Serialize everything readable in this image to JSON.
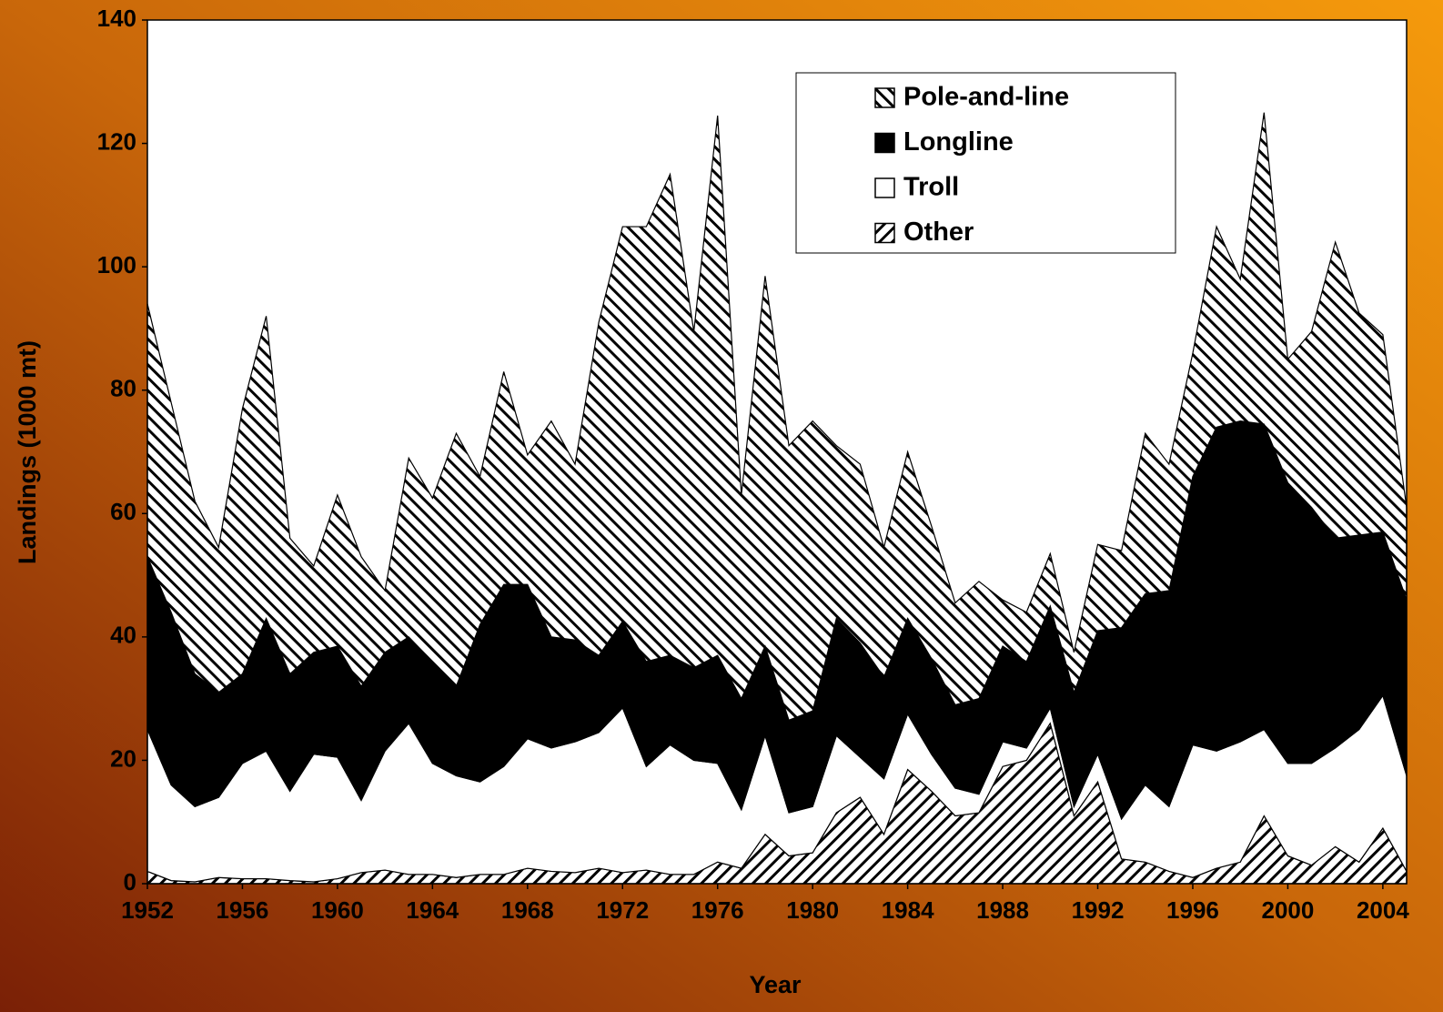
{
  "chart_data": {
    "type": "stacked-area",
    "y_label": "Landings (1000 mt)",
    "x_label": "Year",
    "x": [
      1952,
      1953,
      1954,
      1955,
      1956,
      1957,
      1958,
      1959,
      1960,
      1961,
      1962,
      1963,
      1964,
      1965,
      1966,
      1967,
      1968,
      1969,
      1970,
      1971,
      1972,
      1973,
      1974,
      1975,
      1976,
      1977,
      1978,
      1979,
      1980,
      1981,
      1982,
      1983,
      1984,
      1985,
      1986,
      1987,
      1988,
      1989,
      1990,
      1991,
      1992,
      1993,
      1994,
      1995,
      1996,
      1997,
      1998,
      1999,
      2000,
      2001,
      2002,
      2003,
      2004,
      2005
    ],
    "series": [
      {
        "name": "Other",
        "color": "#000000",
        "pattern": "forward-hatch",
        "values": [
          2,
          0.5,
          0.3,
          1,
          0.8,
          0.8,
          0.5,
          0.3,
          0.8,
          1.8,
          2.2,
          1.5,
          1.5,
          1,
          1.5,
          1.5,
          2.5,
          2,
          1.8,
          2.5,
          1.8,
          2.2,
          1.5,
          1.5,
          3.5,
          2.5,
          8,
          4.5,
          5,
          11.5,
          14,
          8,
          18.5,
          15,
          11,
          11.5,
          19,
          20,
          26,
          11,
          16.5,
          4,
          3.5,
          2,
          1,
          2.5,
          3.5,
          11,
          4.5,
          3,
          6,
          3.5,
          9,
          2
        ]
      },
      {
        "name": "Troll",
        "color": "#ffffff",
        "pattern": "solid",
        "values": [
          23,
          15.5,
          12.2,
          13,
          18.7,
          20.7,
          14.5,
          20.7,
          19.7,
          11.7,
          19.3,
          24.5,
          18,
          16.5,
          15,
          17.5,
          21,
          20,
          21.2,
          22,
          26.7,
          16.8,
          21,
          18.5,
          16,
          9.5,
          16,
          7,
          7.5,
          12.5,
          6.5,
          9,
          9,
          6,
          4.5,
          3,
          4,
          2,
          2.5,
          1.5,
          4.5,
          6.5,
          12.5,
          10.5,
          21.5,
          19,
          19.5,
          14,
          15,
          16.5,
          16,
          21.5,
          21.5,
          15.5
        ]
      },
      {
        "name": "Longline",
        "color": "#000000",
        "pattern": "solid",
        "values": [
          28,
          28,
          21.5,
          17,
          14.5,
          21.5,
          19,
          16.5,
          18,
          18.5,
          16,
          14,
          16.5,
          14.5,
          25.5,
          29.5,
          25,
          18,
          16.5,
          12.5,
          14,
          17,
          14.5,
          15,
          17.5,
          18,
          14.5,
          15,
          15.5,
          19,
          18.5,
          16.5,
          15.5,
          15.5,
          13.5,
          15.5,
          15.5,
          14,
          16.5,
          18.5,
          20,
          31,
          31,
          35,
          43.5,
          52.5,
          52,
          49.5,
          45.5,
          41.5,
          34,
          31.5,
          26.5,
          28.5
        ]
      },
      {
        "name": "Pole-and-line",
        "color": "#000000",
        "pattern": "back-hatch",
        "values": [
          41,
          34,
          28,
          23.5,
          43,
          49,
          22,
          14,
          24.5,
          21,
          10,
          29,
          26.5,
          41,
          24,
          34.5,
          21,
          35,
          28.5,
          54,
          64,
          70.5,
          78,
          54.5,
          87.5,
          33,
          60,
          44.5,
          47,
          28,
          29,
          21,
          27,
          21.5,
          16.5,
          19,
          7.5,
          8,
          8.5,
          6.5,
          14,
          12.5,
          26,
          20.5,
          20,
          32.5,
          23,
          50.5,
          20,
          28.5,
          48,
          36,
          32,
          15
        ]
      }
    ],
    "xlim": [
      1952,
      2005
    ],
    "xticks": [
      1952,
      1956,
      1960,
      1964,
      1968,
      1972,
      1976,
      1980,
      1984,
      1988,
      1992,
      1996,
      2000,
      2004
    ],
    "ylim": [
      0,
      140
    ],
    "yticks": [
      0,
      20,
      40,
      60,
      80,
      100,
      120,
      140
    ],
    "legend": "top-right",
    "legend_order": "reverse"
  }
}
